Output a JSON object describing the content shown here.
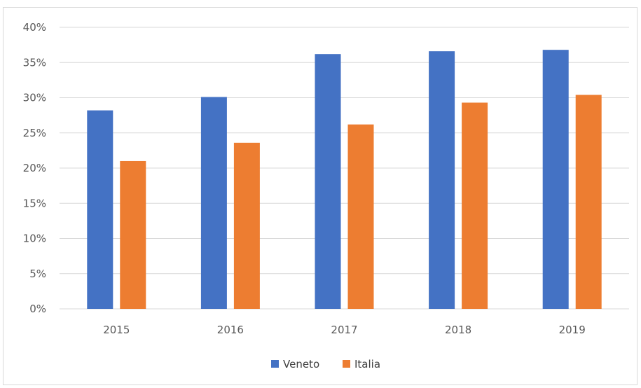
{
  "chart_data": {
    "type": "bar",
    "categories": [
      "2015",
      "2016",
      "2017",
      "2018",
      "2019"
    ],
    "series": [
      {
        "name": "Veneto",
        "values": [
          28.2,
          30.1,
          36.2,
          36.6,
          36.8
        ],
        "color": "#4472C4"
      },
      {
        "name": "Italia",
        "values": [
          21.0,
          23.6,
          26.2,
          29.3,
          30.4
        ],
        "color": "#ED7D31"
      }
    ],
    "y_ticks": [
      "0%",
      "5%",
      "10%",
      "15%",
      "20%",
      "25%",
      "30%",
      "35%",
      "40%"
    ],
    "ylim": [
      0,
      40
    ],
    "grid": true,
    "legend_position": "bottom",
    "gridline_color": "#d9d9d9"
  }
}
